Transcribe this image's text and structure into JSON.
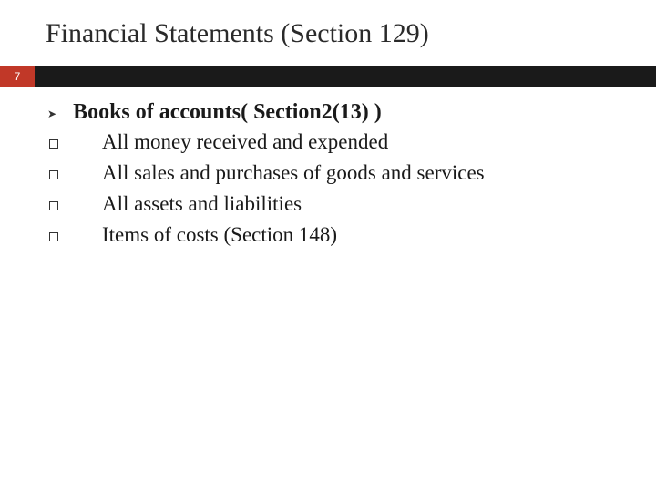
{
  "title": "Financial Statements (Section 129)",
  "pageNumber": "7",
  "mainBullet": "Books of accounts( Section2(13) )",
  "subBullets": [
    "All money received and expended",
    "All sales and purchases of goods and services",
    "All assets and liabilities",
    "Items of costs  (Section 148)"
  ],
  "colors": {
    "barRed": "#c13828",
    "barDark": "#1a1a1a",
    "background": "#ffffff",
    "textDark": "#1a1a1a"
  },
  "typography": {
    "titleFontSize": 30,
    "mainBulletFontSize": 24,
    "subBulletFontSize": 23,
    "pageNumberFontSize": 12
  }
}
